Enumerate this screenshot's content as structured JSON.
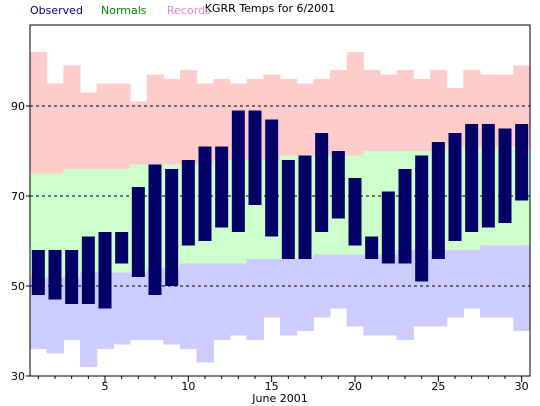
{
  "chart_data": {
    "type": "bar",
    "title": "KGRR Temps for 6/2001",
    "xlabel": "June 2001",
    "ylabel": "",
    "legend": [
      {
        "name": "Observed",
        "color": "#000080"
      },
      {
        "name": "Normals",
        "color": "#008000"
      },
      {
        "name": "Records",
        "color": "#dd88dd"
      }
    ],
    "legend_placement": "top-left",
    "ylim": [
      30,
      108
    ],
    "xlim": [
      0.5,
      30.5
    ],
    "yticks": [
      30,
      50,
      70,
      90
    ],
    "xticks": [
      5,
      10,
      15,
      20,
      25,
      30
    ],
    "dashed_gridlines": [
      50,
      70,
      90
    ],
    "days": [
      1,
      2,
      3,
      4,
      5,
      6,
      7,
      8,
      9,
      10,
      11,
      12,
      13,
      14,
      15,
      16,
      17,
      18,
      19,
      20,
      21,
      22,
      23,
      24,
      25,
      26,
      27,
      28,
      29,
      30
    ],
    "series": [
      {
        "name": "Records",
        "role": "range",
        "color": "#ffcccc",
        "high": [
          102,
          95,
          99,
          93,
          95,
          95,
          91,
          97,
          96,
          98,
          95,
          96,
          95,
          96,
          97,
          96,
          95,
          96,
          98,
          102,
          98,
          97,
          98,
          96,
          98,
          94,
          98,
          97,
          97,
          99
        ],
        "low": [
          36,
          35,
          38,
          32,
          36,
          37,
          38,
          38,
          37,
          36,
          33,
          38,
          39,
          38,
          43,
          39,
          40,
          43,
          45,
          41,
          39,
          39,
          38,
          41,
          41,
          43,
          45,
          43,
          43,
          40
        ]
      },
      {
        "name": "Normals",
        "role": "range",
        "color": "#ccffcc",
        "high": [
          75,
          75,
          76,
          76,
          76,
          76,
          77,
          77,
          77,
          77,
          77,
          78,
          78,
          78,
          78,
          79,
          79,
          79,
          79,
          79,
          80,
          80,
          80,
          80,
          80,
          81,
          81,
          81,
          81,
          81
        ],
        "low": [
          52,
          52,
          52,
          53,
          53,
          53,
          53,
          54,
          54,
          55,
          55,
          55,
          55,
          56,
          56,
          56,
          56,
          57,
          57,
          57,
          57,
          57,
          58,
          58,
          58,
          58,
          58,
          59,
          59,
          59
        ]
      },
      {
        "name": "Observed",
        "role": "range",
        "color": "#000066",
        "high": [
          58,
          58,
          58,
          61,
          62,
          62,
          72,
          77,
          76,
          78,
          81,
          81,
          89,
          89,
          87,
          78,
          79,
          84,
          80,
          74,
          61,
          71,
          76,
          79,
          82,
          84,
          86,
          86,
          85,
          86
        ],
        "low": [
          48,
          47,
          46,
          46,
          45,
          55,
          52,
          48,
          50,
          59,
          60,
          63,
          62,
          68,
          61,
          56,
          56,
          62,
          65,
          59,
          56,
          55,
          55,
          51,
          56,
          60,
          62,
          63,
          64,
          69
        ]
      }
    ]
  }
}
